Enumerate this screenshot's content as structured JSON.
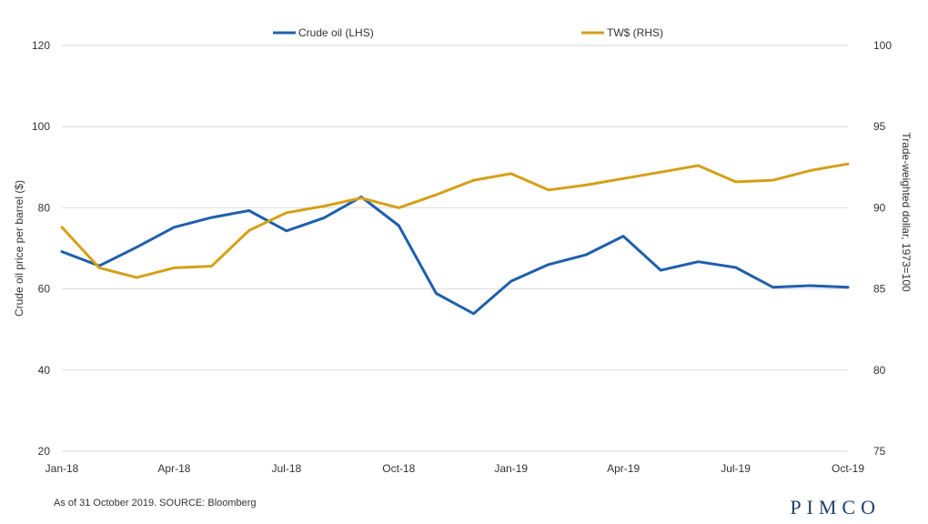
{
  "chart_data": {
    "type": "line",
    "x": [
      "Jan-18",
      "Feb-18",
      "Mar-18",
      "Apr-18",
      "May-18",
      "Jun-18",
      "Jul-18",
      "Aug-18",
      "Sep-18",
      "Oct-18",
      "Nov-18",
      "Dec-18",
      "Jan-19",
      "Feb-19",
      "Mar-19",
      "Apr-19",
      "May-19",
      "Jun-19",
      "Jul-19",
      "Aug-19",
      "Sep-19",
      "Oct-19"
    ],
    "x_tick_labels": [
      "Jan-18",
      "Apr-18",
      "Jul-18",
      "Oct-18",
      "Jan-19",
      "Apr-19",
      "Jul-19",
      "Oct-19"
    ],
    "ylabel_left": "Crude oil price per barrel ($)",
    "ylabel_right": "Trade-weighted dollar, 1973=100",
    "ylim_left": [
      20,
      120
    ],
    "ylim_right": [
      75,
      100
    ],
    "yticks_left": [
      "20",
      "40",
      "60",
      "80",
      "100",
      "120"
    ],
    "yticks_right": [
      "75",
      "80",
      "85",
      "90",
      "95",
      "100"
    ],
    "grid": "horizontal",
    "legend_position": "top",
    "series": [
      {
        "name": "Crude oil (LHS)",
        "axis": "left",
        "color": "#1f5fad",
        "values": [
          69.2,
          65.7,
          70.3,
          75.2,
          77.6,
          79.3,
          74.3,
          77.5,
          82.7,
          75.6,
          58.9,
          53.9,
          61.9,
          66.0,
          68.4,
          73.0,
          64.6,
          66.7,
          65.3,
          60.4,
          60.8,
          60.4
        ]
      },
      {
        "name": "TW$ (RHS)",
        "axis": "right",
        "color": "#d4a017",
        "values": [
          88.8,
          86.3,
          85.7,
          86.3,
          86.4,
          88.6,
          89.7,
          90.1,
          90.6,
          90.0,
          90.8,
          91.7,
          92.1,
          91.1,
          91.4,
          91.8,
          92.2,
          92.6,
          91.6,
          91.7,
          92.3,
          92.7
        ]
      }
    ]
  },
  "footnote": "As of 31 October 2019. SOURCE: Bloomberg",
  "logo_text": "PIMCO"
}
